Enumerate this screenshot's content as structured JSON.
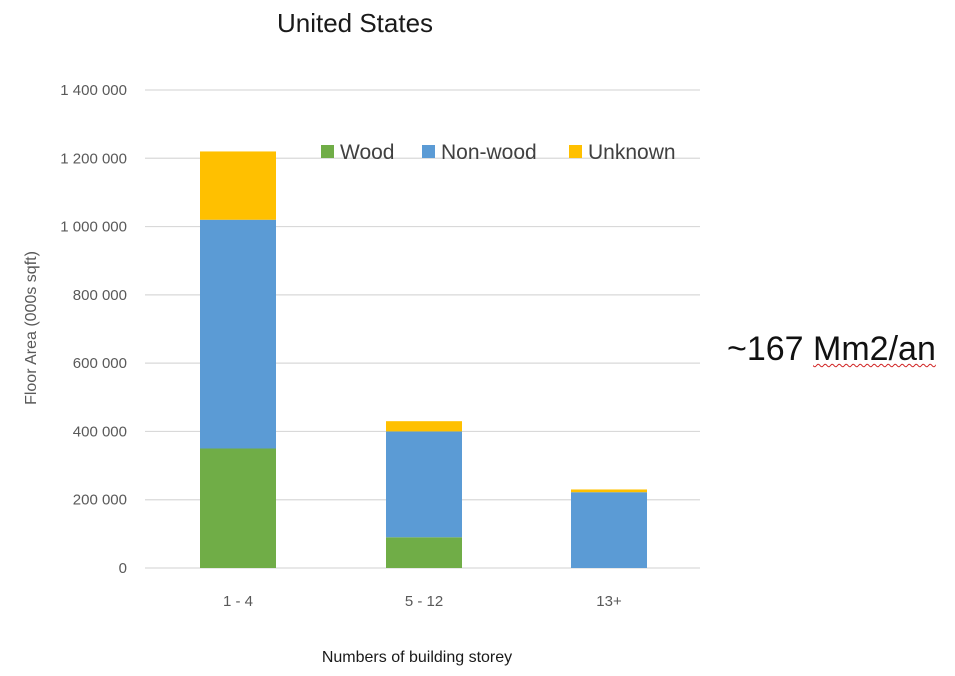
{
  "chart_data": {
    "type": "bar",
    "stacked": true,
    "title": "United States",
    "xlabel": "Numbers of building storey",
    "ylabel": "Floor Area (000s sqft)",
    "categories": [
      "1 - 4",
      "5 - 12",
      "13+"
    ],
    "series": [
      {
        "name": "Wood",
        "values": [
          350000,
          90000,
          0
        ]
      },
      {
        "name": "Non-wood",
        "values": [
          670000,
          310000,
          222000
        ]
      },
      {
        "name": "Unknown",
        "values": [
          200000,
          30000,
          8000
        ]
      }
    ],
    "ylim": [
      0,
      1400000
    ],
    "yticks": [
      0,
      200000,
      400000,
      600000,
      800000,
      1000000,
      1200000,
      1400000
    ],
    "ytick_labels": [
      "0",
      "200 000",
      "400 000",
      "600 000",
      "800 000",
      "1 000 000",
      "1 200 000",
      "1 400 000"
    ],
    "grid": true,
    "legend_position": "top-right",
    "colors": {
      "Wood": "#70ad47",
      "Non-wood": "#5b9bd5",
      "Unknown": "#ffc000"
    }
  },
  "annotation": {
    "prefix": "~167 ",
    "underlined": "Mm2/an"
  }
}
